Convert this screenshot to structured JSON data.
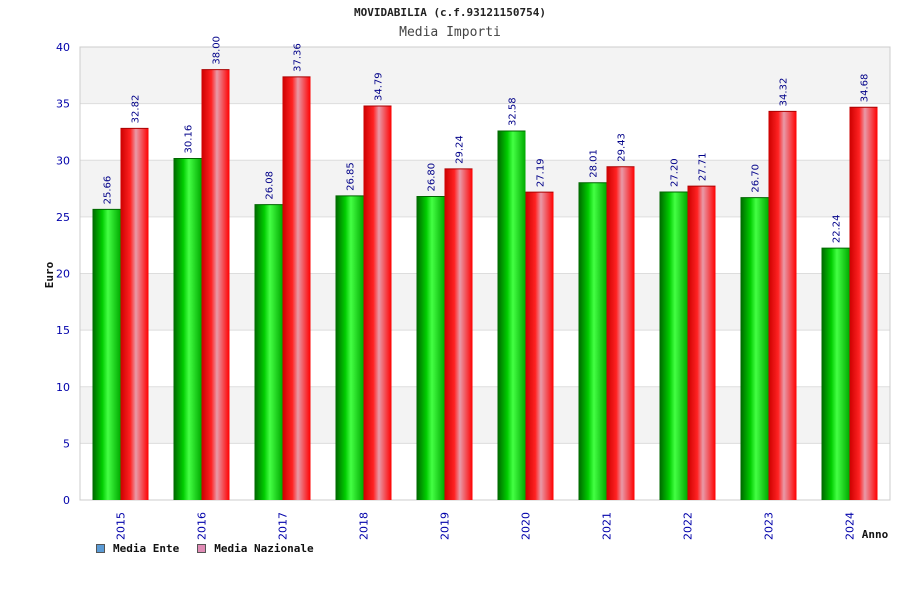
{
  "chart_data": {
    "type": "bar",
    "title": "MOVIDABILIA (c.f.93121150754)",
    "subtitle": "Media Importi",
    "xlabel": "Anno",
    "ylabel": "Euro",
    "ylim": [
      0,
      40
    ],
    "yticks": [
      "0",
      "5",
      "10",
      "15",
      "20",
      "25",
      "30",
      "35",
      "40"
    ],
    "categories": [
      "2015",
      "2016",
      "2017",
      "2018",
      "2019",
      "2020",
      "2021",
      "2022",
      "2023",
      "2024"
    ],
    "series": [
      {
        "name": "Media Ente",
        "values": [
          25.66,
          30.16,
          26.08,
          26.85,
          26.8,
          32.58,
          28.01,
          27.2,
          26.7,
          22.24
        ],
        "labels": [
          "25.66",
          "30.16",
          "26.08",
          "26.85",
          "26.80",
          "32.58",
          "28.01",
          "27.20",
          "26.70",
          "22.24"
        ],
        "color": "#00c000",
        "legend_color": "#5b9bd5"
      },
      {
        "name": "Media Nazionale",
        "values": [
          32.82,
          38.0,
          37.36,
          34.79,
          29.24,
          27.19,
          29.43,
          27.71,
          34.32,
          34.68
        ],
        "labels": [
          "32.82",
          "38.00",
          "37.36",
          "34.79",
          "29.24",
          "27.19",
          "29.43",
          "27.71",
          "34.32",
          "34.68"
        ],
        "color": "#ff0000",
        "legend_color": "#e08bb5"
      }
    ],
    "grid": true,
    "legend_position": "bottom-left"
  }
}
